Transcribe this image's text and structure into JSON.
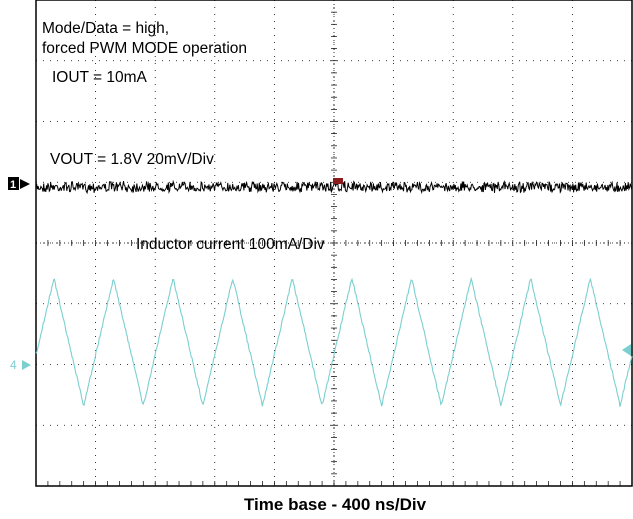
{
  "chart_data": {
    "type": "line",
    "title": "",
    "xlabel": "Time base - 400 ns/Div",
    "ylabel": "",
    "grid": true,
    "x_divisions": 10,
    "y_divisions": 8,
    "annotations": [
      "Mode/Data = high,",
      "forced PWM MODE operation",
      "IOUT = 10mA",
      "VOUT = 1.8V 20mV/Div",
      "Inductor current 100mA/Div"
    ],
    "channel_markers": [
      "1",
      "4"
    ],
    "series": [
      {
        "name": "VOUT = 1.8V 20mV/Div",
        "color": "#000000",
        "description_values": "flat noisy trace around channel-1 reference",
        "baseline_div": 0,
        "noise_pp_div": 0.15
      },
      {
        "name": "Inductor current 100mA/Div",
        "color": "#7ccfcf",
        "waveform": "triangle",
        "period_div": 1.0,
        "peak_to_peak_div": 2.1,
        "peaks_at_div": [
          0.3,
          1.3,
          2.3,
          3.3,
          4.3,
          5.3,
          6.3,
          7.3,
          8.3,
          9.3
        ]
      }
    ]
  }
}
